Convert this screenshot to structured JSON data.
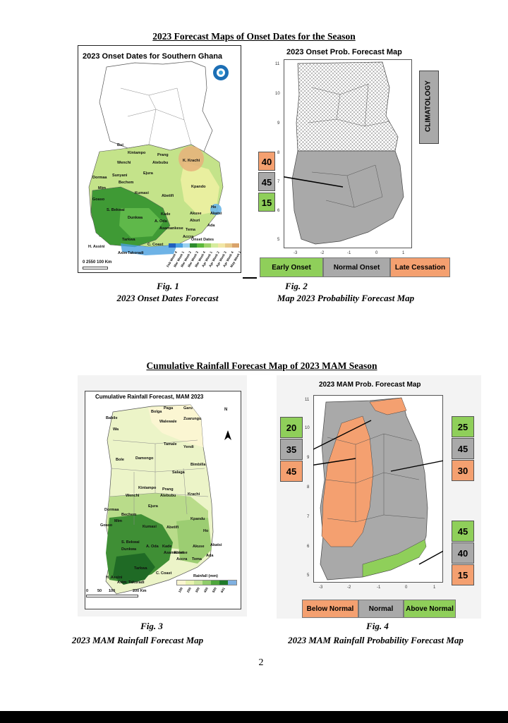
{
  "section1": {
    "heading": "2023 Forecast Maps of Onset Dates for the Season",
    "fig1": {
      "title": "2023 Onset Dates for Southern Ghana",
      "labels": [
        "Bui",
        "Kintampo",
        "Prang",
        "Wenchi",
        "Atebubu",
        "K. Krachi",
        "Dormaa",
        "Sunyani",
        "Ejura",
        "Bechem",
        "Kpando",
        "Mim",
        "Kumasi",
        "Abetifi",
        "Goaso",
        "S. Bekwai",
        "Ho",
        "Dunkwa",
        "Kade",
        "Akuse",
        "Akatsi",
        "A. Oda",
        "Aburi",
        "Ada",
        "Asamankese",
        "Tema",
        "Accra",
        "Tarkwa",
        "C. Coast",
        "H. Assini",
        "Axim",
        "Takoradi"
      ],
      "legend_title": "Onset Dates",
      "legend_items": [
        "Feb Week 4",
        "Mar Week 1",
        "Mar Week 2",
        "Mar Week 3",
        "Mar Week 4",
        "Apr Week 1",
        "Apr Week 2",
        "Apr Week 3",
        "Apr Week 4",
        "May Week 1"
      ],
      "legend_colors": [
        "#1f5fbf",
        "#4aa0e0",
        "#9ad0f0",
        "#2e8b2e",
        "#5cb83c",
        "#9fd36a",
        "#d6ec9e",
        "#f2e7a6",
        "#e8c98a",
        "#d9a36b"
      ],
      "scale_text": "0 2550  100 Km",
      "fig_label": "Fig. 1",
      "caption": "2023 Onset Dates Forecast"
    },
    "fig2": {
      "title": "2023 Onset Prob. Forecast Map",
      "y_ticks": [
        "11",
        "10",
        "9",
        "8",
        "7",
        "6",
        "5"
      ],
      "x_ticks": [
        "-3",
        "-2",
        "-1",
        "0",
        "1"
      ],
      "probs": [
        "40",
        "45",
        "15"
      ],
      "side_label": "CLIMATOLOGY",
      "legend": [
        "Early Onset",
        "Normal Onset",
        "Late Cessation"
      ],
      "fig_label": "Fig. 2",
      "caption": "Map 2023 Probability Forecast Map"
    }
  },
  "section2": {
    "heading": "Cumulative Rainfall Forecast Map of 2023 MAM Season",
    "fig3": {
      "title": "Cumulative Rainfall Forecast, MAM 2023",
      "labels": [
        "Paga",
        "Bolga",
        "Garu",
        "Babile",
        "Walewale",
        "Zuarungu",
        "Wa",
        "Tamale",
        "Yendi",
        "Bole",
        "Damongo",
        "Bimbilla",
        "Salaga",
        "Kintampo",
        "Prang",
        "Wenchi",
        "Atebubu",
        "Krachi",
        "Ejura",
        "Dormaa",
        "Bechem",
        "Kpandu",
        "Mim",
        "Goaso",
        "Kumasi",
        "Abetifi",
        "Ho",
        "S. Bekwai",
        "A. Oda",
        "Kade",
        "Akuse",
        "Akatsi",
        "Dunkwa",
        "Asamankese",
        "Aburi",
        "Ada",
        "Accra",
        "Tema",
        "Tarkwa",
        "C. Coast",
        "H. Assini",
        "Axim",
        "Takoradi"
      ],
      "north": "N",
      "legend_title": "Rainfall (mm)",
      "legend_values": [
        "100",
        "200",
        "300",
        "400",
        "500",
        "641"
      ],
      "legend_colors": [
        "#fbf6d2",
        "#e8f2b0",
        "#c8e49a",
        "#8fcc6a",
        "#4ea63c",
        "#1f7a2a",
        "#7fb0e0"
      ],
      "scale_ticks": [
        "0",
        "50",
        "100",
        "200 Km"
      ],
      "fig_label": "Fig. 3",
      "caption": "2023 MAM Rainfall Forecast Map"
    },
    "fig4": {
      "title": "2023 MAM Prob. Forecast Map",
      "y_ticks": [
        "11",
        "10",
        "9",
        "8",
        "7",
        "6",
        "5"
      ],
      "x_ticks": [
        "-3",
        "-2",
        "-1",
        "0",
        "1"
      ],
      "left_probs": [
        "20",
        "35",
        "45"
      ],
      "right_top_probs": [
        "25",
        "45",
        "30"
      ],
      "right_bottom_probs": [
        "45",
        "40",
        "15"
      ],
      "legend": [
        "Below Normal",
        "Normal",
        "Above Normal"
      ],
      "fig_label": "Fig. 4",
      "caption": "2023 MAM Rainfall Probability Forecast Map"
    }
  },
  "page_number": "2",
  "colors": {
    "orange": "#f4a070",
    "gray": "#a9a9a9",
    "green": "#8fcf5a",
    "navy_header": "#1a2a6c"
  }
}
